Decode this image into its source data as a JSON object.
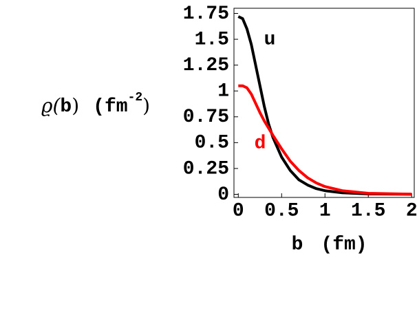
{
  "chart_data": {
    "type": "line",
    "y_label_parts": [
      "ϱ(",
      "b",
      ")",
      "(fm",
      "-2",
      ")"
    ],
    "x_label_parts": [
      "b",
      "(fm)"
    ],
    "annotations": [
      {
        "text": "u",
        "color": "#000000"
      },
      {
        "text": "d",
        "color": "#ff0000"
      }
    ],
    "x": [
      0,
      0.05,
      0.1,
      0.15,
      0.2,
      0.25,
      0.3,
      0.35,
      0.4,
      0.5,
      0.6,
      0.7,
      0.8,
      0.9,
      1.0,
      1.2,
      1.5,
      2.0
    ],
    "series": [
      {
        "name": "u",
        "color": "#000000",
        "values": [
          1.72,
          1.7,
          1.6,
          1.45,
          1.25,
          1.05,
          0.85,
          0.68,
          0.55,
          0.36,
          0.23,
          0.14,
          0.09,
          0.055,
          0.035,
          0.015,
          0.004,
          0.001
        ]
      },
      {
        "name": "d",
        "color": "#ff0000",
        "values": [
          1.05,
          1.05,
          1.03,
          0.97,
          0.88,
          0.79,
          0.71,
          0.64,
          0.57,
          0.44,
          0.32,
          0.23,
          0.16,
          0.11,
          0.075,
          0.035,
          0.01,
          0.002
        ]
      }
    ],
    "xlim": [
      -0.05,
      2.03
    ],
    "ylim": [
      -0.03,
      1.8
    ],
    "xticks": [
      0,
      0.5,
      1,
      1.5,
      2
    ],
    "yticks": [
      0,
      0.25,
      0.5,
      0.75,
      1,
      1.25,
      1.5,
      1.75
    ]
  }
}
